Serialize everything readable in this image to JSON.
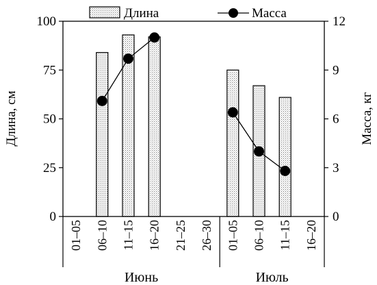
{
  "chart_data": {
    "type": "bar",
    "categories": [
      "01–05",
      "06–10",
      "11–15",
      "16–20",
      "21–25",
      "26–30",
      "01–05",
      "06–10",
      "11–15",
      "16–20"
    ],
    "groups": [
      {
        "label": "Июнь",
        "start": 0,
        "end": 5
      },
      {
        "label": "Июль",
        "start": 6,
        "end": 9
      }
    ],
    "series": [
      {
        "name": "Длина",
        "type": "bar",
        "axis": "left",
        "values": [
          null,
          84,
          93,
          92,
          null,
          null,
          75,
          67,
          61,
          null
        ]
      },
      {
        "name": "Масса",
        "type": "line",
        "axis": "right",
        "values": [
          null,
          7.1,
          9.7,
          11.0,
          null,
          null,
          6.4,
          4.0,
          2.8,
          null
        ]
      }
    ],
    "ylabel": "Длина, см",
    "y2label": "Масса, кг",
    "ylim": [
      0,
      100
    ],
    "y2lim": [
      0,
      12
    ],
    "yticks": [
      0,
      25,
      50,
      75,
      100
    ],
    "y2ticks": [
      0,
      3,
      6,
      9,
      12
    ],
    "legend": "top"
  }
}
